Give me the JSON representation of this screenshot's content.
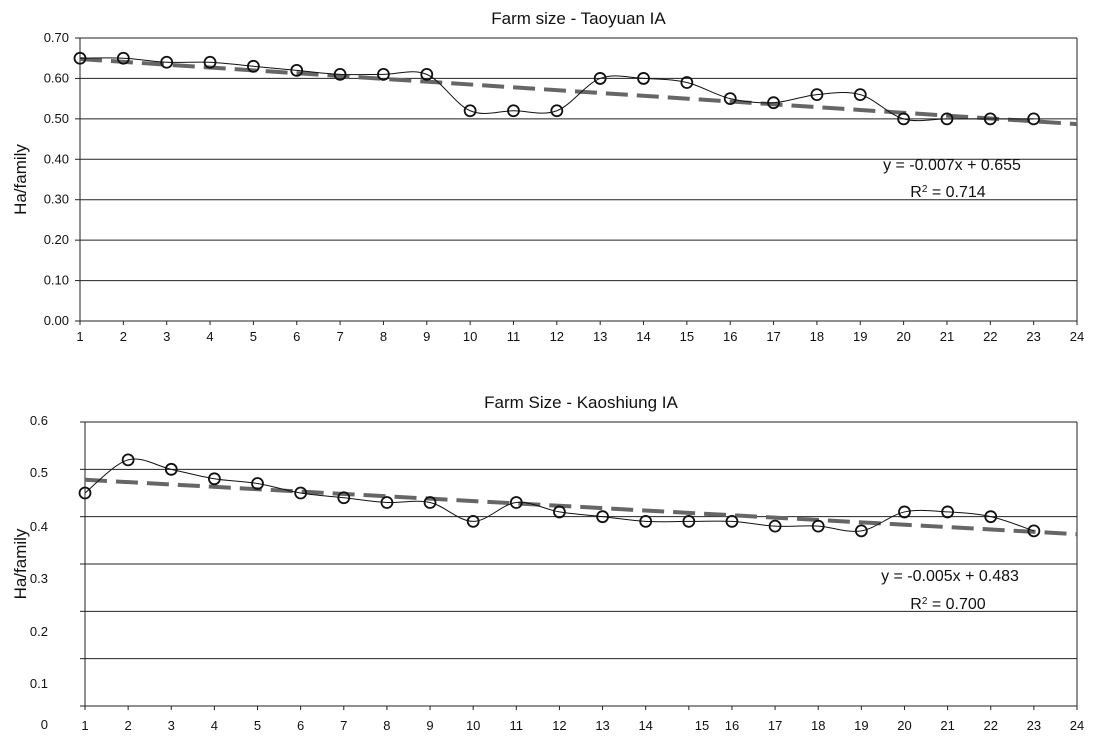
{
  "chart_data": [
    {
      "type": "line",
      "title": "Farm size - Taoyuan IA",
      "ylabel": "Ha/family",
      "xlabel": "",
      "xlim": [
        1,
        24
      ],
      "ylim": [
        0,
        0.7
      ],
      "x_ticks": [
        "1",
        "2",
        "3",
        "4",
        "5",
        "6",
        "7",
        "8",
        "9",
        "10",
        "11",
        "12",
        "13",
        "14",
        "15",
        "16",
        "17",
        "18",
        "19",
        "20",
        "21",
        "22",
        "23",
        "24"
      ],
      "y_ticks": [
        "0.00",
        "0.10",
        "0.20",
        "0.30",
        "0.40",
        "0.50",
        "0.60",
        "0.70"
      ],
      "y_tick_values": [
        0,
        0.1,
        0.2,
        0.3,
        0.4,
        0.5,
        0.6,
        0.7
      ],
      "grid": true,
      "series": [
        {
          "x": [
            1,
            2,
            3,
            4,
            5,
            6,
            7,
            8,
            9,
            10,
            11,
            12,
            13,
            14,
            15,
            16,
            17,
            18,
            19,
            20,
            21,
            22,
            23
          ],
          "values": [
            0.65,
            0.65,
            0.64,
            0.64,
            0.63,
            0.62,
            0.61,
            0.61,
            0.61,
            0.52,
            0.52,
            0.52,
            0.6,
            0.6,
            0.59,
            0.55,
            0.54,
            0.56,
            0.56,
            0.5,
            0.5,
            0.5,
            0.5
          ]
        }
      ],
      "trendline": {
        "slope": -0.007,
        "intercept": 0.655,
        "x_range": [
          1,
          24
        ],
        "style": "dashed"
      },
      "equation": "y = -0.007x + 0.655",
      "r2_prefix": "R",
      "r2_suffix": " = 0.714"
    },
    {
      "type": "line",
      "title": "Farm Size - Kaoshiung IA",
      "ylabel": "Ha/family",
      "xlabel": "",
      "xlim": [
        1,
        24
      ],
      "ylim": [
        0,
        0.6
      ],
      "x_ticks": [
        "1",
        "2",
        "3",
        "4",
        "5",
        "6",
        "7",
        "8",
        "9",
        "10",
        "11",
        "12",
        "13",
        "14",
        "15",
        "16",
        "17",
        "18",
        "19",
        "20",
        "21",
        "22",
        "23",
        "24"
      ],
      "y_ticks": [
        "0",
        "0.1",
        "0.2",
        "0.3",
        "0.4",
        "0.5",
        "0.6"
      ],
      "y_tick_values": [
        0,
        0.1,
        0.2,
        0.3,
        0.4,
        0.5,
        0.6
      ],
      "grid": true,
      "series": [
        {
          "x": [
            1,
            2,
            3,
            4,
            5,
            6,
            7,
            8,
            9,
            10,
            11,
            12,
            13,
            14,
            15,
            16,
            17,
            18,
            19,
            20,
            21,
            22,
            23
          ],
          "values": [
            0.45,
            0.52,
            0.5,
            0.48,
            0.47,
            0.45,
            0.44,
            0.43,
            0.43,
            0.39,
            0.43,
            0.41,
            0.4,
            0.39,
            0.39,
            0.39,
            0.38,
            0.38,
            0.37,
            0.41,
            0.41,
            0.4,
            0.37
          ]
        }
      ],
      "trendline": {
        "slope": -0.005,
        "intercept": 0.483,
        "x_range": [
          1,
          24
        ],
        "style": "dashed"
      },
      "equation": "y = -0.005x + 0.483",
      "r2_prefix": "R",
      "r2_suffix": " = 0.700"
    }
  ]
}
